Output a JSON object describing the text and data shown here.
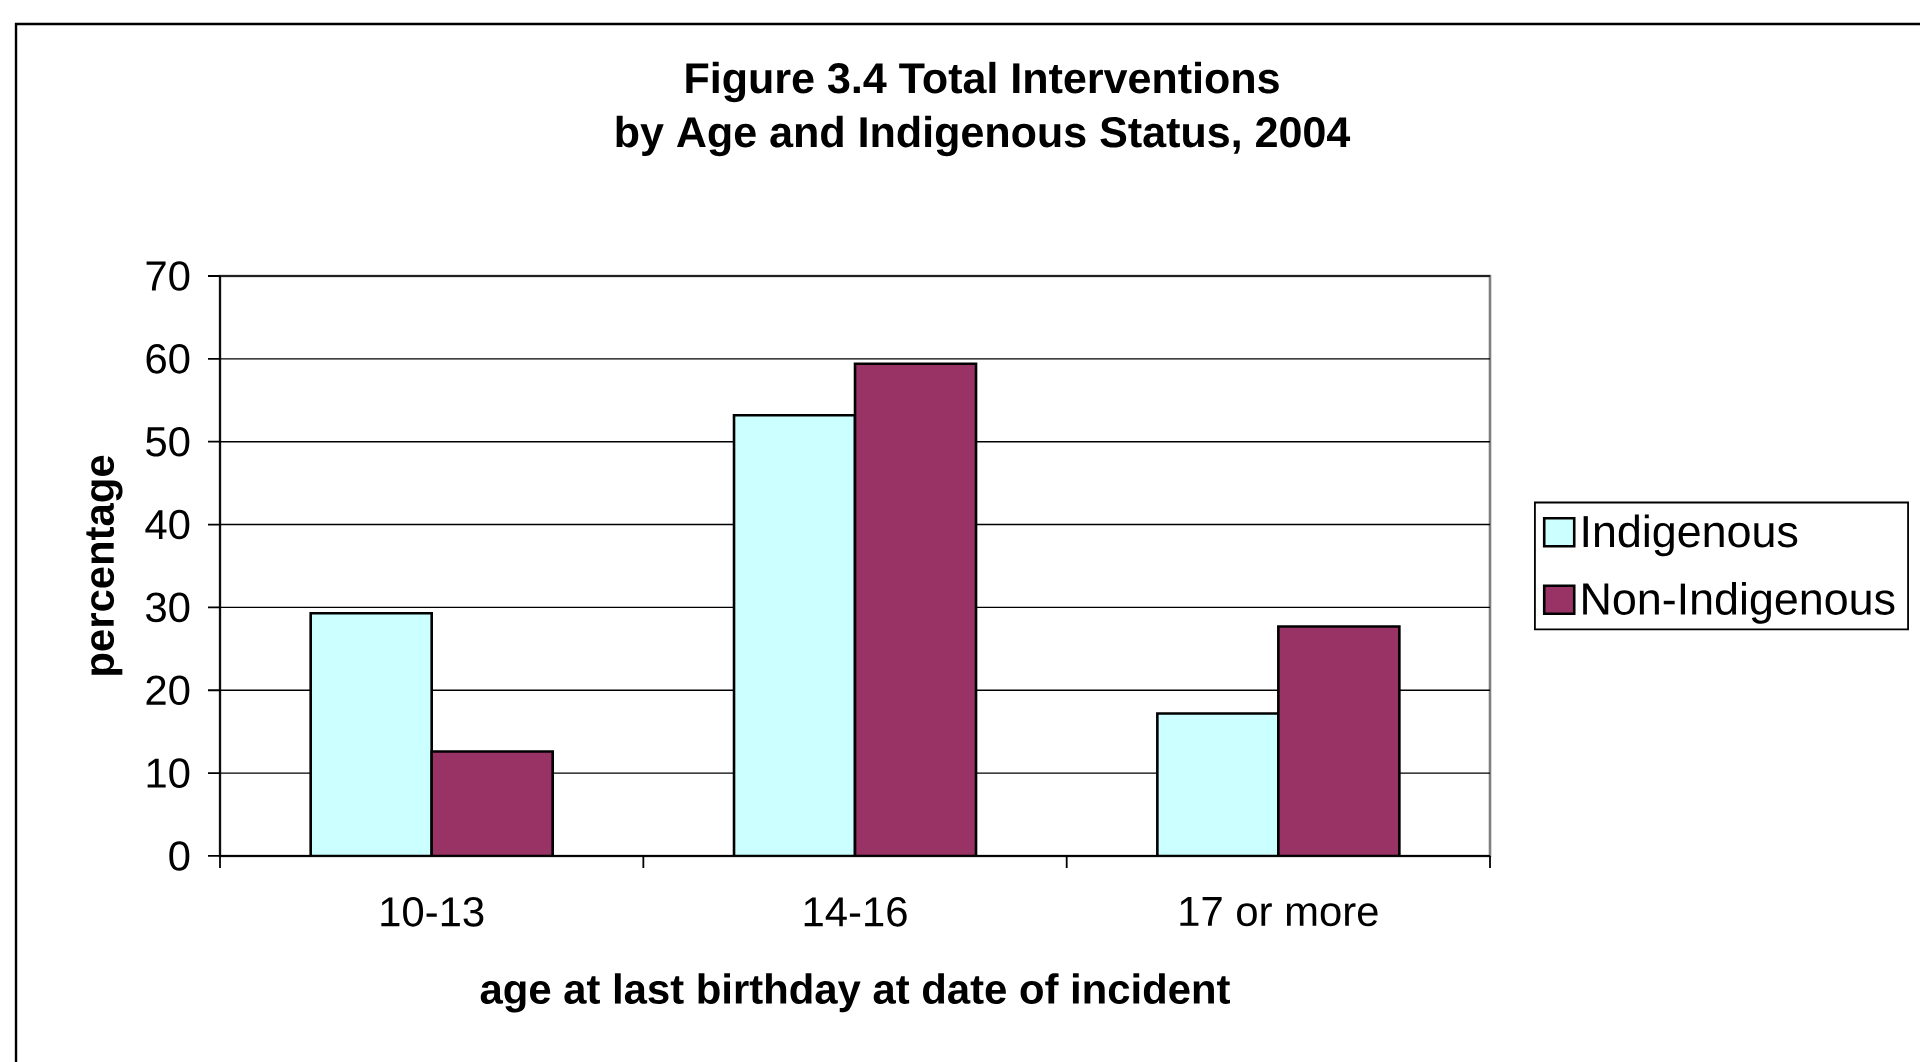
{
  "chart_data": {
    "type": "bar",
    "title": "Figure 3.4 Total Interventions",
    "subtitle": "by Age and Indigenous Status, 2004",
    "xlabel": "age at last birthday at date of incident",
    "ylabel": "percentage",
    "categories": [
      "10-13",
      "14-16",
      "17 or more"
    ],
    "series": [
      {
        "name": "Indigenous",
        "color": "#ccffff",
        "values": [
          29.3,
          53.2,
          17.2
        ]
      },
      {
        "name": "Non-Indigenous",
        "color": "#993366",
        "values": [
          12.6,
          59.4,
          27.7
        ]
      }
    ],
    "ylim": [
      0,
      70
    ],
    "yticks": [
      0,
      10,
      20,
      30,
      40,
      50,
      60,
      70
    ],
    "grid": "y",
    "legend": "right"
  }
}
